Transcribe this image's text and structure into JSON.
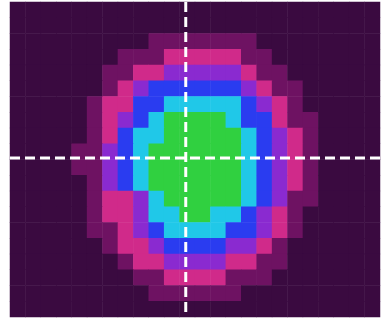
{
  "chart_data": {
    "type": "heatmap",
    "tick_labels": false,
    "zlim": [
      0,
      6
    ],
    "colors": [
      "#3a0a40",
      "#6e1262",
      "#d02a8a",
      "#8a2ad0",
      "#2a3cf0",
      "#20c8e8",
      "#30d040"
    ],
    "crosshair": {
      "x": 11.4,
      "y": 9.9,
      "color": "#ffffff",
      "line_style": "dashed"
    },
    "cells": [
      [
        0,
        0,
        0,
        0,
        0,
        0,
        0,
        0,
        0,
        0,
        0,
        0,
        0,
        0,
        0,
        0,
        0,
        0,
        0,
        0,
        0,
        0,
        0,
        0
      ],
      [
        0,
        0,
        0,
        0,
        0,
        0,
        0,
        0,
        0,
        0,
        0,
        0,
        0,
        0,
        0,
        0,
        0,
        0,
        0,
        0,
        0,
        0,
        0,
        0
      ],
      [
        0,
        0,
        0,
        0,
        0,
        0,
        0,
        0,
        0,
        1,
        1,
        1,
        1,
        1,
        1,
        1,
        0,
        0,
        0,
        0,
        0,
        0,
        0,
        0
      ],
      [
        0,
        0,
        0,
        0,
        0,
        0,
        0,
        1,
        1,
        1,
        2,
        2,
        2,
        2,
        2,
        1,
        1,
        0,
        0,
        0,
        0,
        0,
        0,
        0
      ],
      [
        0,
        0,
        0,
        0,
        0,
        0,
        1,
        1,
        2,
        2,
        3,
        3,
        3,
        3,
        3,
        2,
        1,
        1,
        0,
        0,
        0,
        0,
        0,
        0
      ],
      [
        0,
        0,
        0,
        0,
        0,
        0,
        1,
        2,
        3,
        4,
        4,
        4,
        4,
        4,
        4,
        3,
        2,
        1,
        1,
        0,
        0,
        0,
        0,
        0
      ],
      [
        0,
        0,
        0,
        0,
        0,
        1,
        2,
        2,
        4,
        4,
        5,
        5,
        5,
        5,
        5,
        4,
        3,
        2,
        1,
        0,
        0,
        0,
        0,
        0
      ],
      [
        0,
        0,
        0,
        0,
        0,
        1,
        2,
        3,
        4,
        5,
        6,
        6,
        6,
        6,
        5,
        4,
        4,
        2,
        1,
        1,
        0,
        0,
        0,
        0
      ],
      [
        0,
        0,
        0,
        0,
        0,
        1,
        2,
        4,
        5,
        5,
        6,
        6,
        6,
        6,
        6,
        5,
        4,
        3,
        2,
        1,
        0,
        0,
        0,
        0
      ],
      [
        0,
        0,
        0,
        0,
        1,
        1,
        3,
        4,
        5,
        6,
        6,
        6,
        6,
        6,
        6,
        5,
        4,
        3,
        2,
        1,
        0,
        0,
        0,
        0
      ],
      [
        0,
        0,
        0,
        0,
        1,
        1,
        3,
        4,
        5,
        6,
        6,
        6,
        6,
        6,
        6,
        5,
        4,
        3,
        2,
        1,
        0,
        0,
        0,
        0
      ],
      [
        0,
        0,
        0,
        0,
        0,
        1,
        3,
        4,
        5,
        6,
        6,
        6,
        6,
        6,
        6,
        5,
        4,
        3,
        2,
        1,
        0,
        0,
        0,
        0
      ],
      [
        0,
        0,
        0,
        0,
        0,
        1,
        2,
        2,
        3,
        5,
        6,
        6,
        6,
        6,
        6,
        5,
        4,
        3,
        1,
        1,
        0,
        0,
        0,
        0
      ],
      [
        0,
        0,
        0,
        0,
        0,
        1,
        2,
        2,
        3,
        5,
        5,
        6,
        6,
        5,
        5,
        4,
        3,
        2,
        1,
        0,
        0,
        0,
        0,
        0
      ],
      [
        0,
        0,
        0,
        0,
        0,
        1,
        1,
        2,
        3,
        4,
        5,
        5,
        5,
        5,
        4,
        4,
        3,
        2,
        1,
        0,
        0,
        0,
        0,
        0
      ],
      [
        0,
        0,
        0,
        0,
        0,
        0,
        1,
        2,
        2,
        3,
        4,
        4,
        4,
        4,
        3,
        3,
        2,
        1,
        0,
        0,
        0,
        0,
        0,
        0
      ],
      [
        0,
        0,
        0,
        0,
        0,
        0,
        0,
        1,
        2,
        2,
        3,
        3,
        3,
        3,
        2,
        2,
        1,
        1,
        0,
        0,
        0,
        0,
        0,
        0
      ],
      [
        0,
        0,
        0,
        0,
        0,
        0,
        0,
        0,
        1,
        1,
        2,
        2,
        2,
        2,
        1,
        1,
        1,
        0,
        0,
        0,
        0,
        0,
        0,
        0
      ],
      [
        0,
        0,
        0,
        0,
        0,
        0,
        0,
        0,
        0,
        1,
        1,
        1,
        1,
        1,
        1,
        0,
        0,
        0,
        0,
        0,
        0,
        0,
        0,
        0
      ],
      [
        0,
        0,
        0,
        0,
        0,
        0,
        0,
        0,
        0,
        0,
        0,
        0,
        0,
        0,
        0,
        0,
        0,
        0,
        0,
        0,
        0,
        0,
        0,
        0
      ]
    ]
  }
}
